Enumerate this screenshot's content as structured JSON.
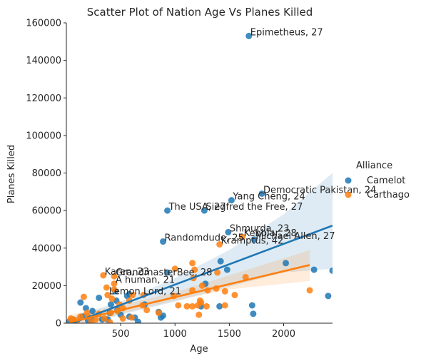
{
  "chart_data": {
    "type": "scatter",
    "title": "Scatter Plot of Nation Age Vs Planes Killed",
    "xlabel": "Age",
    "ylabel": "Planes Killed",
    "xlim": [
      0,
      2450
    ],
    "ylim": [
      0,
      160000
    ],
    "xticks": [
      "500",
      "1000",
      "1500",
      "2000"
    ],
    "yticks": [
      "0",
      "20000",
      "40000",
      "60000",
      "80000",
      "100000",
      "120000",
      "140000",
      "160000"
    ],
    "grid": false,
    "legend": {
      "title": "Alliance",
      "placement": "right"
    },
    "colors": {
      "Camelot": "#1f77b4",
      "Carthago": "#ff7f0e"
    },
    "series": [
      {
        "name": "Camelot",
        "points": [
          [
            1680,
            153000
          ],
          [
            1800,
            69000
          ],
          [
            1520,
            65500
          ],
          [
            930,
            60000
          ],
          [
            1270,
            60000
          ],
          [
            1490,
            48500
          ],
          [
            1730,
            44500
          ],
          [
            890,
            43500
          ],
          [
            1420,
            33000
          ],
          [
            2020,
            32000
          ],
          [
            2280,
            28500
          ],
          [
            2450,
            28000
          ],
          [
            930,
            27000
          ],
          [
            1480,
            28500
          ],
          [
            1280,
            21000
          ],
          [
            2410,
            14500
          ],
          [
            1710,
            9500
          ],
          [
            1410,
            9000
          ],
          [
            1240,
            9000
          ],
          [
            1720,
            5000
          ],
          [
            720,
            10000
          ],
          [
            580,
            15500
          ],
          [
            450,
            17000
          ],
          [
            460,
            12000
          ],
          [
            300,
            13500
          ],
          [
            410,
            10000
          ],
          [
            850,
            6000
          ],
          [
            470,
            7000
          ],
          [
            400,
            5500
          ],
          [
            240,
            6500
          ],
          [
            580,
            3500
          ],
          [
            630,
            3000
          ],
          [
            870,
            3000
          ],
          [
            890,
            4000
          ],
          [
            380,
            2000
          ],
          [
            230,
            2500
          ],
          [
            150,
            3500
          ],
          [
            180,
            8000
          ],
          [
            130,
            11000
          ],
          [
            60,
            2000
          ],
          [
            30,
            1000
          ],
          [
            200,
            1500
          ],
          [
            330,
            2000
          ],
          [
            660,
            700
          ],
          [
            500,
            4500
          ],
          [
            560,
            14500
          ]
        ],
        "fit": {
          "x": [
            30,
            2450
          ],
          "y": [
            -500,
            52000
          ]
        },
        "ci": {
          "x": [
            30,
            500,
            1000,
            1500,
            2000,
            2450
          ],
          "lower": [
            -4000,
            4500,
            11500,
            19500,
            27000,
            29000
          ],
          "upper": [
            3000,
            11500,
            24000,
            39000,
            58000,
            80000
          ]
        },
        "labels": [
          {
            "text": "Epimetheus, 27",
            "x": 1680,
            "y": 153000
          },
          {
            "text": "Democratic Pakistan, 24",
            "x": 1800,
            "y": 69000
          },
          {
            "text": "Yang Cheng, 24",
            "x": 1520,
            "y": 65500
          },
          {
            "text": "The USA, 27",
            "x": 930,
            "y": 60000
          },
          {
            "text": "Siegfred the Free, 27",
            "x": 1270,
            "y": 60000
          },
          {
            "text": "Shmurda, 23",
            "x": 1490,
            "y": 48500
          },
          {
            "text": "Michael Allen, 27",
            "x": 1730,
            "y": 44500
          },
          {
            "text": "Randomdude, 25",
            "x": 890,
            "y": 43500
          }
        ]
      },
      {
        "name": "Carthago",
        "points": [
          [
            1410,
            42000
          ],
          [
            1620,
            46000
          ],
          [
            340,
            25500
          ],
          [
            440,
            25000
          ],
          [
            1160,
            32000
          ],
          [
            1180,
            28500
          ],
          [
            1000,
            29000
          ],
          [
            1390,
            27000
          ],
          [
            1170,
            24000
          ],
          [
            1650,
            24500
          ],
          [
            370,
            19000
          ],
          [
            440,
            18000
          ],
          [
            610,
            15000
          ],
          [
            420,
            13000
          ],
          [
            710,
            15000
          ],
          [
            1160,
            17500
          ],
          [
            1250,
            20000
          ],
          [
            1300,
            17500
          ],
          [
            1380,
            18500
          ],
          [
            1460,
            17000
          ],
          [
            1550,
            15000
          ],
          [
            2240,
            17500
          ],
          [
            990,
            14500
          ],
          [
            1230,
            12000
          ],
          [
            580,
            12000
          ],
          [
            1240,
            11000
          ],
          [
            700,
            9500
          ],
          [
            1030,
            9500
          ],
          [
            1110,
            9000
          ],
          [
            1160,
            9000
          ],
          [
            1210,
            9500
          ],
          [
            1290,
            9000
          ],
          [
            1460,
            9500
          ],
          [
            520,
            8000
          ],
          [
            470,
            6500
          ],
          [
            300,
            5000
          ],
          [
            410,
            5500
          ],
          [
            850,
            5500
          ],
          [
            740,
            7000
          ],
          [
            1220,
            4500
          ],
          [
            160,
            14000
          ],
          [
            190,
            5500
          ],
          [
            130,
            3500
          ],
          [
            200,
            3500
          ],
          [
            270,
            2000
          ],
          [
            350,
            2500
          ],
          [
            520,
            2500
          ],
          [
            600,
            3000
          ],
          [
            40,
            2500
          ],
          [
            100,
            1500
          ],
          [
            60,
            2000
          ],
          [
            230,
            1000
          ],
          [
            400,
            500
          ],
          [
            380,
            15000
          ],
          [
            490,
            10000
          ],
          [
            440,
            21000
          ]
        ],
        "fit": {
          "x": [
            30,
            2240
          ],
          "y": [
            500,
            31000
          ]
        },
        "ci": {
          "x": [
            30,
            500,
            1000,
            1500,
            2000,
            2240
          ],
          "lower": [
            -3500,
            5000,
            12000,
            18000,
            21000,
            22500
          ],
          "upper": [
            4500,
            9500,
            16500,
            25500,
            34500,
            39000
          ]
        },
        "labels": [
          {
            "text": "Kramptus, 42",
            "x": 1410,
            "y": 42000
          },
          {
            "text": "Kebblar, 28",
            "x": 1620,
            "y": 46000
          },
          {
            "text": "Karen, 23",
            "x": 340,
            "y": 25500
          },
          {
            "text": "GrandmasterBee, 28",
            "x": 440,
            "y": 25000
          },
          {
            "text": "A human, 21",
            "x": 440,
            "y": 21000
          },
          {
            "text": "Lemon Lord, 21",
            "x": 380,
            "y": 15000
          }
        ]
      }
    ]
  }
}
